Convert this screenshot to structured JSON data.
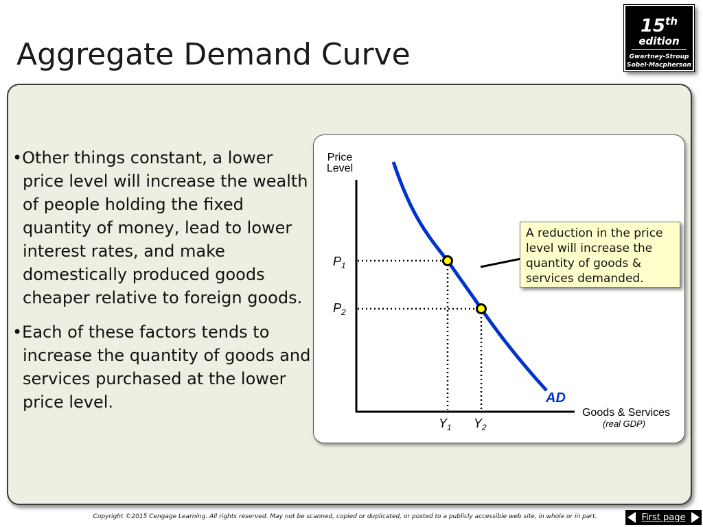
{
  "slide": {
    "title": "Aggregate Demand Curve"
  },
  "badge": {
    "number": "15",
    "suffix": "th",
    "edition": "edition",
    "author_line_1": "Gwartney-Stroup",
    "author_line_2": "Sobel-Macpherson"
  },
  "bullets": [
    "Other things constant, a lower price level will increase the wealth of people holding the fixed quantity of money, lead to lower interest rates, and make domestically produced goods cheaper relative to foreign goods.",
    "Each of these factors tends to increase the quantity of goods and services purchased at the lower price level."
  ],
  "diagram": {
    "y_axis_label_line_1": "Price",
    "y_axis_label_line_2": "Level",
    "x_axis_label": "Goods & Services",
    "x_axis_sublabel": "(real GDP)",
    "curve_label": "AD",
    "p1_base": "P",
    "p1_sub": "1",
    "p2_base": "P",
    "p2_sub": "2",
    "y1_base": "Y",
    "y1_sub": "1",
    "y2_base": "Y",
    "y2_sub": "2",
    "curve_color": "#0033cc",
    "point_fill": "#ffff00"
  },
  "callout": {
    "text": "A reduction in the price level will increase the quantity of goods & services demanded."
  },
  "footer": {
    "copyright": "Copyright ©2015 Cengage Learning. All rights reserved. May not be scanned, copied or duplicated, or posted to a publicly accessible web site, in whole or in part.",
    "first_page_label": "First page"
  }
}
